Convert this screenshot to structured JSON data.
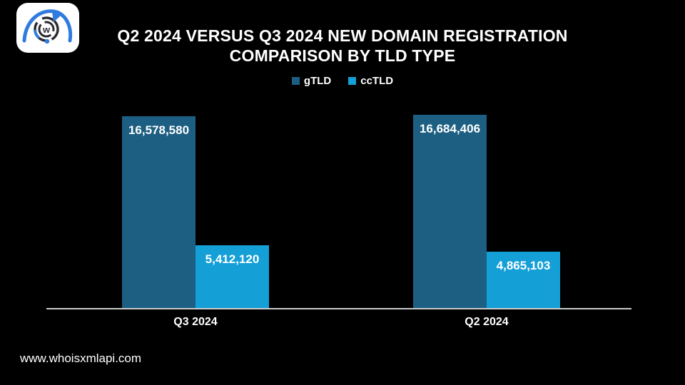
{
  "page": {
    "background": "#000000",
    "footer_url": "www.whoisxmlapi.com"
  },
  "logo": {
    "name": "whoisxmlapi-logo",
    "card_color": "#ffffff",
    "accent_blue": "#2F7BDE",
    "ring_dark": "#2B2B33",
    "letter": "w"
  },
  "chart_data": {
    "type": "bar",
    "title": "Q2 2024 VERSUS Q3 2024 NEW DOMAIN REGISTRATION COMPARISON BY TLD TYPE",
    "title_line1": "Q2 2024 VERSUS Q3 2024 NEW DOMAIN REGISTRATION",
    "title_line2": "COMPARISON BY TLD TYPE",
    "xlabel": "",
    "ylabel": "",
    "ylim": [
      0,
      17000000
    ],
    "grid": false,
    "legend_position": "top",
    "categories": [
      "Q3 2024",
      "Q2 2024"
    ],
    "series": [
      {
        "name": "gTLD",
        "color": "#1D5F82",
        "values": [
          16578580,
          16684406
        ],
        "labels": [
          "16,578,580",
          "16,684,406"
        ]
      },
      {
        "name": "ccTLD",
        "color": "#149FD7",
        "values": [
          5412120,
          4865103
        ],
        "labels": [
          "5,412,120",
          "4,865,103"
        ]
      }
    ],
    "axis_line_color": "#C9C9C9",
    "value_label_color": "#FFFFFF"
  }
}
